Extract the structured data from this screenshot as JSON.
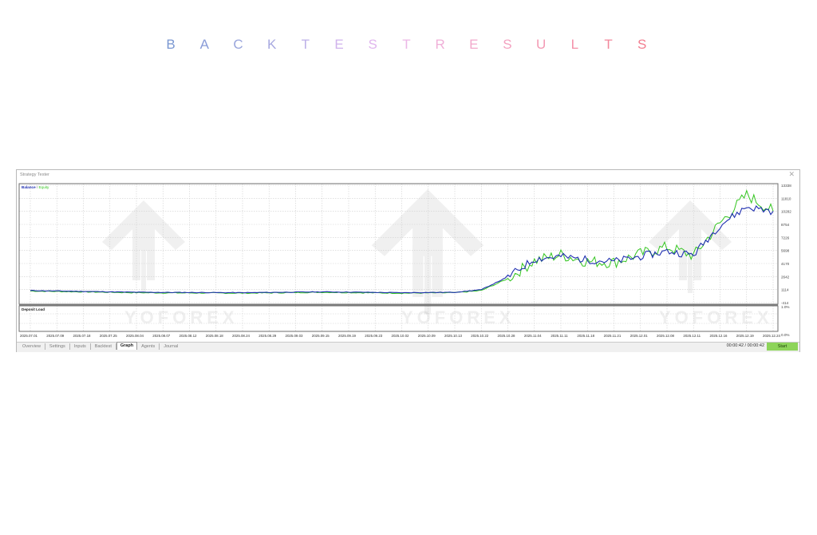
{
  "heading": {
    "letters": [
      "B",
      "A",
      "C",
      "K",
      "T",
      "E",
      "S",
      "T",
      "R",
      "E",
      "S",
      "U",
      "L",
      "T",
      "S"
    ],
    "colors": [
      "#7b98d2",
      "#8a9cd8",
      "#9aa6dc",
      "#a7a8e0",
      "#bdb0e8",
      "#d0b3ec",
      "#e0b6ee",
      "#ecb7e6",
      "#f0b0d8",
      "#f2a9cc",
      "#f3a2c0",
      "#f39ab4",
      "#f490a8",
      "#f3889c",
      "#f27e90"
    ]
  },
  "window": {
    "title": "Strategy Tester",
    "close_icon": "close-icon"
  },
  "chart": {
    "legend_balance": "Balance",
    "legend_sep": " / ",
    "legend_equity": "Equity",
    "deposit_load_label": "Deposit Load",
    "deposit_load_top": "1.0%",
    "deposit_load_bottom": "0.0%",
    "watermark_text": "YOFOREX",
    "colors": {
      "balance": "#1f2fb0",
      "equity": "#33c51f",
      "grid": "#cfcfcf",
      "frame": "#6d6d6d"
    }
  },
  "tabs": [
    {
      "label": "Overview",
      "active": false
    },
    {
      "label": "Settings",
      "active": false
    },
    {
      "label": "Inputs",
      "active": false
    },
    {
      "label": "Backtest",
      "active": false
    },
    {
      "label": "Graph",
      "active": true
    },
    {
      "label": "Agents",
      "active": false
    },
    {
      "label": "Journal",
      "active": false
    }
  ],
  "status": {
    "timer": "00:00:42 / 00:00:42",
    "start_label": "Start"
  },
  "chart_data": {
    "type": "line",
    "title": "Balance / Equity",
    "xlabel": "",
    "ylabel": "",
    "ylim": [
      -414,
      13338
    ],
    "y_ticks": [
      13338,
      11810,
      10282,
      8754,
      7226,
      5698,
      4170,
      2642,
      1114,
      -414
    ],
    "x_ticks": [
      "2025.07.01",
      "2025.07.09",
      "2025.07.18",
      "2025.07.25",
      "2025.08.04",
      "2025.08.07",
      "2025.08.12",
      "2025.08.18",
      "2025.08.24",
      "2025.08.29",
      "2025.09.03",
      "2025.09.15",
      "2025.09.19",
      "2025.09.23",
      "2025.10.02",
      "2025.10.09",
      "2025.10.13",
      "2025.10.22",
      "2025.10.28",
      "2025.11.04",
      "2025.11.11",
      "2025.11.18",
      "2025.11.21",
      "2025.12.01",
      "2025.12.08",
      "2025.12.11",
      "2025.12.16",
      "2025.12.19",
      "2025.12.24"
    ],
    "grid": true,
    "legend_position": "top-left",
    "series": [
      {
        "name": "Balance",
        "color": "#1f2fb0",
        "x": [
          "2025.07.01",
          "2025.07.18",
          "2025.08.04",
          "2025.08.24",
          "2025.09.15",
          "2025.10.02",
          "2025.10.13",
          "2025.10.22",
          "2025.10.28",
          "2025.11.04",
          "2025.11.11",
          "2025.11.18",
          "2025.11.21",
          "2025.12.01",
          "2025.12.08",
          "2025.12.11",
          "2025.12.16",
          "2025.12.19",
          "2025.12.24"
        ],
        "values": [
          1000,
          900,
          800,
          750,
          850,
          750,
          800,
          1100,
          2600,
          4700,
          5000,
          4600,
          4400,
          5000,
          5600,
          5200,
          8700,
          10800,
          10300
        ]
      },
      {
        "name": "Equity",
        "color": "#33c51f",
        "x": [
          "2025.07.01",
          "2025.07.18",
          "2025.08.04",
          "2025.08.24",
          "2025.09.15",
          "2025.10.02",
          "2025.10.13",
          "2025.10.22",
          "2025.10.28",
          "2025.11.04",
          "2025.11.11",
          "2025.11.18",
          "2025.11.21",
          "2025.12.01",
          "2025.12.08",
          "2025.12.11",
          "2025.12.16",
          "2025.12.19",
          "2025.12.24"
        ],
        "values": [
          950,
          850,
          750,
          700,
          800,
          700,
          750,
          1000,
          2400,
          4500,
          5200,
          4400,
          4300,
          5300,
          6100,
          5100,
          8900,
          12200,
          10300
        ]
      }
    ]
  }
}
